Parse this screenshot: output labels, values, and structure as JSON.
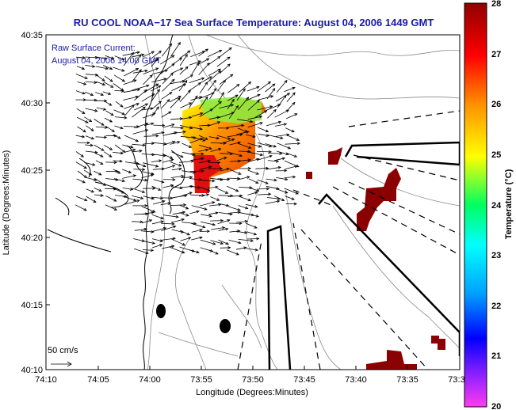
{
  "title": "RU COOL  NOAA−17  Sea Surface Temperature:  August 04, 2006 1449 GMT",
  "annotation_line1": "Raw Surface Current:",
  "annotation_line2": "August 04, 2006 14:00 GMT",
  "scale_label": "50 cm/s",
  "x_axis_label": "Longitude (Degrees:Minutes)",
  "y_axis_label": "Latitude (Degrees:Minutes)",
  "colorbar_label": "Temperature (°C)",
  "x_ticks": [
    "74:10",
    "74:05",
    "74:00",
    "73:55",
    "73:50",
    "73:45",
    "73:40",
    "73:35",
    "73:3"
  ],
  "y_ticks": [
    "40:35",
    "40:30",
    "40:25",
    "40:20",
    "40:15",
    "40:10"
  ],
  "colorbar_ticks": [
    "28",
    "27",
    "26",
    "25",
    "24",
    "23",
    "22",
    "21",
    "20"
  ],
  "colors": {
    "title": "#1a1aa6",
    "coast": "#000000",
    "contour": "#8a8a8a",
    "hot_sst": "#8b0000"
  },
  "colorbar_stops": [
    {
      "value": 20,
      "color": "#ff3cf0"
    },
    {
      "value": 20.7,
      "color": "#8c20ff"
    },
    {
      "value": 21.4,
      "color": "#0000ff"
    },
    {
      "value": 22.3,
      "color": "#00a0ff"
    },
    {
      "value": 23.2,
      "color": "#00ffff"
    },
    {
      "value": 24.0,
      "color": "#00ff60"
    },
    {
      "value": 25.0,
      "color": "#ffff00"
    },
    {
      "value": 26.0,
      "color": "#ff9000"
    },
    {
      "value": 27.0,
      "color": "#ff0000"
    },
    {
      "value": 28.0,
      "color": "#900000"
    }
  ]
}
